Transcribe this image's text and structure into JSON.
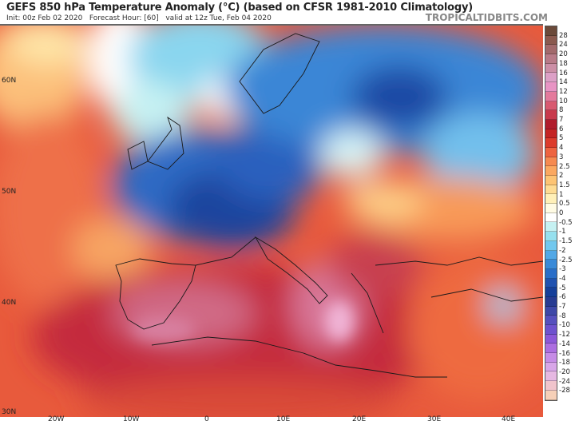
{
  "header": {
    "title": "GEFS 850 hPa Temperature Anomaly (°C) (based on CFSR 1981-2010 Climatology)",
    "subtitle": "Init: 00z Feb 02 2020   Forecast Hour: [60]   valid at 12z Tue, Feb 04 2020",
    "brand": "TROPICALTIDBITS.COM"
  },
  "axes": {
    "lon_labels": [
      "20W",
      "10W",
      "0",
      "10E",
      "20E",
      "30E",
      "40E"
    ],
    "lat_labels": [
      "60N",
      "50N",
      "40N",
      "30N"
    ]
  },
  "colorbar": {
    "labels": [
      "28",
      "24",
      "20",
      "18",
      "16",
      "14",
      "12",
      "10",
      "8",
      "7",
      "6",
      "5",
      "4",
      "3",
      "2.5",
      "2",
      "1.5",
      "1",
      "0.5",
      "0",
      "-0.5",
      "-1",
      "-1.5",
      "-2",
      "-2.5",
      "-3",
      "-4",
      "-5",
      "-6",
      "-7",
      "-8",
      "-10",
      "-12",
      "-14",
      "-16",
      "-18",
      "-20",
      "-24",
      "-28"
    ],
    "colors": [
      "#6b4a3a",
      "#8a5a4f",
      "#a26a6c",
      "#b87b88",
      "#cc8fa6",
      "#dca0c6",
      "#e894c4",
      "#e47a9c",
      "#d85a70",
      "#c83a4c",
      "#b01c2c",
      "#c42424",
      "#dc3c2c",
      "#ee6440",
      "#f68a50",
      "#fba860",
      "#fdc474",
      "#fedc94",
      "#fff0b8",
      "#fffbe4",
      "#ffffff",
      "#c6f1f2",
      "#96e0ee",
      "#72c8ee",
      "#52a8e6",
      "#3a8ad8",
      "#2a6ec8",
      "#2052b0",
      "#16409a",
      "#283c92",
      "#3e48a8",
      "#5650be",
      "#6e52ce",
      "#8c58d8",
      "#ac6ee0",
      "#c68ce6",
      "#d8a6e8",
      "#e6b8e2",
      "#f0c4cc",
      "#f6d0b8"
    ]
  }
}
